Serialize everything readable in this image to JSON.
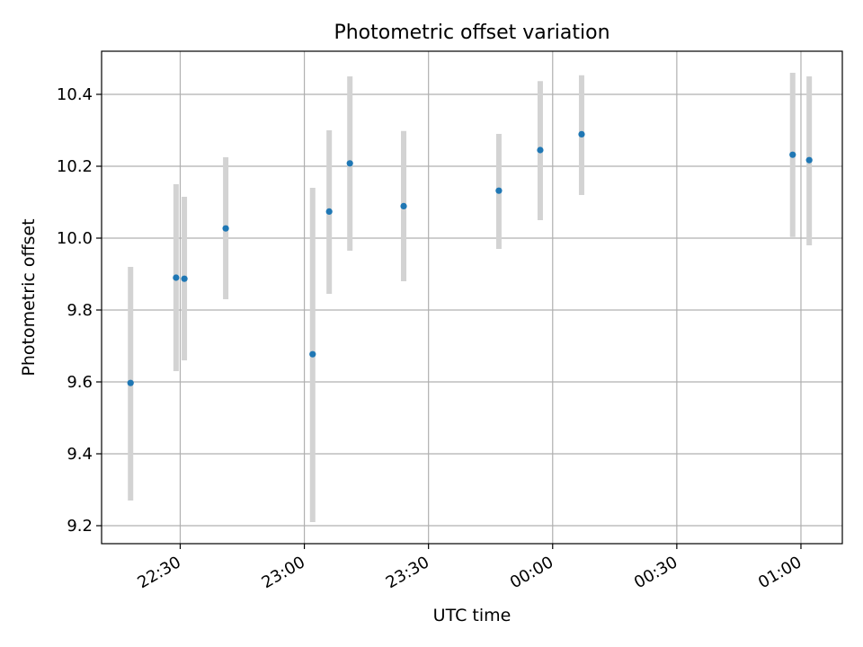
{
  "chart_data": {
    "type": "scatter",
    "title": "Photometric offset variation",
    "xlabel": "UTC time",
    "ylabel": "Photometric offset",
    "xlim": [
      "22:11",
      "01:10"
    ],
    "ylim": [
      9.15,
      10.52
    ],
    "xticks": [
      "22:30",
      "23:00",
      "23:30",
      "00:00",
      "00:30",
      "01:00"
    ],
    "yticks": [
      "9.2",
      "9.4",
      "9.6",
      "9.8",
      "10.0",
      "10.2",
      "10.4"
    ],
    "grid": true,
    "colors": {
      "point": "#1f77b4",
      "errorbar": "#d3d3d3",
      "grid": "#b0b0b0"
    },
    "points": [
      {
        "x": "22:18",
        "y": 9.597,
        "yerr_low": 9.27,
        "yerr_high": 9.92
      },
      {
        "x": "22:29",
        "y": 9.89,
        "yerr_low": 9.63,
        "yerr_high": 10.15
      },
      {
        "x": "22:31",
        "y": 9.887,
        "yerr_low": 9.66,
        "yerr_high": 10.115
      },
      {
        "x": "22:41",
        "y": 10.027,
        "yerr_low": 9.83,
        "yerr_high": 10.225
      },
      {
        "x": "23:02",
        "y": 9.677,
        "yerr_low": 9.21,
        "yerr_high": 10.14
      },
      {
        "x": "23:06",
        "y": 10.074,
        "yerr_low": 9.845,
        "yerr_high": 10.3
      },
      {
        "x": "23:11",
        "y": 10.208,
        "yerr_low": 9.965,
        "yerr_high": 10.45
      },
      {
        "x": "23:24",
        "y": 10.089,
        "yerr_low": 9.88,
        "yerr_high": 10.298
      },
      {
        "x": "23:47",
        "y": 10.132,
        "yerr_low": 9.97,
        "yerr_high": 10.29
      },
      {
        "x": "23:57",
        "y": 10.245,
        "yerr_low": 10.05,
        "yerr_high": 10.437
      },
      {
        "x": "00:07",
        "y": 10.289,
        "yerr_low": 10.12,
        "yerr_high": 10.453
      },
      {
        "x": "00:58",
        "y": 10.232,
        "yerr_low": 10.003,
        "yerr_high": 10.46
      },
      {
        "x": "01:02",
        "y": 10.217,
        "yerr_low": 9.98,
        "yerr_high": 10.45
      }
    ]
  }
}
